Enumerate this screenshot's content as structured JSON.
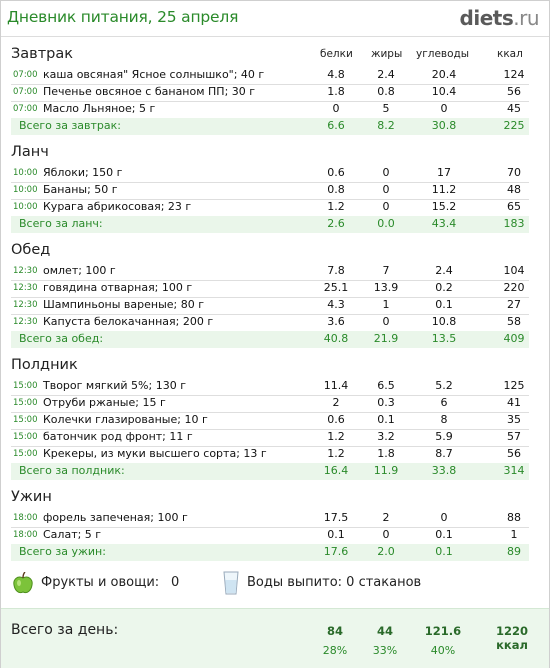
{
  "header": {
    "title": "Дневник питания, 25 апреля",
    "logo_main": "diets",
    "logo_tld": ".ru"
  },
  "columns": {
    "protein": "белки",
    "fat": "жиры",
    "carbs": "углеводы",
    "kcal": "ккал"
  },
  "meals": [
    {
      "name": "Завтрак",
      "items": [
        {
          "time": "07:00",
          "name": "каша овсяная\" Ясное солнышко\"; 40 г",
          "p": "4.8",
          "f": "2.4",
          "c": "20.4",
          "k": "124"
        },
        {
          "time": "07:00",
          "name": "Печенье овсяное с бананом ПП; 30 г",
          "p": "1.8",
          "f": "0.8",
          "c": "10.4",
          "k": "56"
        },
        {
          "time": "07:00",
          "name": "Масло Льняное; 5 г",
          "p": "0",
          "f": "5",
          "c": "0",
          "k": "45"
        }
      ],
      "total": {
        "label": "Всего за завтрак:",
        "p": "6.6",
        "f": "8.2",
        "c": "30.8",
        "k": "225"
      }
    },
    {
      "name": "Ланч",
      "items": [
        {
          "time": "10:00",
          "name": "Яблоки; 150 г",
          "p": "0.6",
          "f": "0",
          "c": "17",
          "k": "70"
        },
        {
          "time": "10:00",
          "name": "Бананы; 50 г",
          "p": "0.8",
          "f": "0",
          "c": "11.2",
          "k": "48"
        },
        {
          "time": "10:00",
          "name": "Курага абрикосовая; 23 г",
          "p": "1.2",
          "f": "0",
          "c": "15.2",
          "k": "65"
        }
      ],
      "total": {
        "label": "Всего за ланч:",
        "p": "2.6",
        "f": "0.0",
        "c": "43.4",
        "k": "183"
      }
    },
    {
      "name": "Обед",
      "items": [
        {
          "time": "12:30",
          "name": "омлет; 100 г",
          "p": "7.8",
          "f": "7",
          "c": "2.4",
          "k": "104"
        },
        {
          "time": "12:30",
          "name": "говядина отварная; 100 г",
          "p": "25.1",
          "f": "13.9",
          "c": "0.2",
          "k": "220"
        },
        {
          "time": "12:30",
          "name": "Шампиньоны вареные; 80 г",
          "p": "4.3",
          "f": "1",
          "c": "0.1",
          "k": "27"
        },
        {
          "time": "12:30",
          "name": "Капуста белокачанная; 200 г",
          "p": "3.6",
          "f": "0",
          "c": "10.8",
          "k": "58"
        }
      ],
      "total": {
        "label": "Всего за обед:",
        "p": "40.8",
        "f": "21.9",
        "c": "13.5",
        "k": "409"
      }
    },
    {
      "name": "Полдник",
      "items": [
        {
          "time": "15:00",
          "name": "Творог мягкий 5%; 130 г",
          "p": "11.4",
          "f": "6.5",
          "c": "5.2",
          "k": "125"
        },
        {
          "time": "15:00",
          "name": "Отруби ржаные; 15 г",
          "p": "2",
          "f": "0.3",
          "c": "6",
          "k": "41"
        },
        {
          "time": "15:00",
          "name": "Колечки глазированые; 10 г",
          "p": "0.6",
          "f": "0.1",
          "c": "8",
          "k": "35"
        },
        {
          "time": "15:00",
          "name": "батончик  род фронт; 11 г",
          "p": "1.2",
          "f": "3.2",
          "c": "5.9",
          "k": "57"
        },
        {
          "time": "15:00",
          "name": "Крекеры, из муки высшего сорта; 13 г",
          "p": "1.2",
          "f": "1.8",
          "c": "8.7",
          "k": "56"
        }
      ],
      "total": {
        "label": "Всего за полдник:",
        "p": "16.4",
        "f": "11.9",
        "c": "33.8",
        "k": "314"
      }
    },
    {
      "name": "Ужин",
      "items": [
        {
          "time": "18:00",
          "name": "форель запеченая; 100 г",
          "p": "17.5",
          "f": "2",
          "c": "0",
          "k": "88"
        },
        {
          "time": "18:00",
          "name": "Салат; 5 г",
          "p": "0.1",
          "f": "0",
          "c": "0.1",
          "k": "1"
        }
      ],
      "total": {
        "label": "Всего за ужин:",
        "p": "17.6",
        "f": "2.0",
        "c": "0.1",
        "k": "89"
      }
    }
  ],
  "extras": {
    "fruits_label": "Фрукты и овощи:",
    "fruits_value": "0",
    "water_text": "Воды выпито: 0 стаканов"
  },
  "day_total": {
    "label": "Всего за день:",
    "protein": "84",
    "fat": "44",
    "carbs": "121.6",
    "kcal": "1220 ккал",
    "protein_pct": "28%",
    "fat_pct": "33%",
    "carbs_pct": "40%"
  },
  "colors": {
    "accent_green": "#2a8a2a",
    "total_row_bg": "#eaf6ea"
  }
}
